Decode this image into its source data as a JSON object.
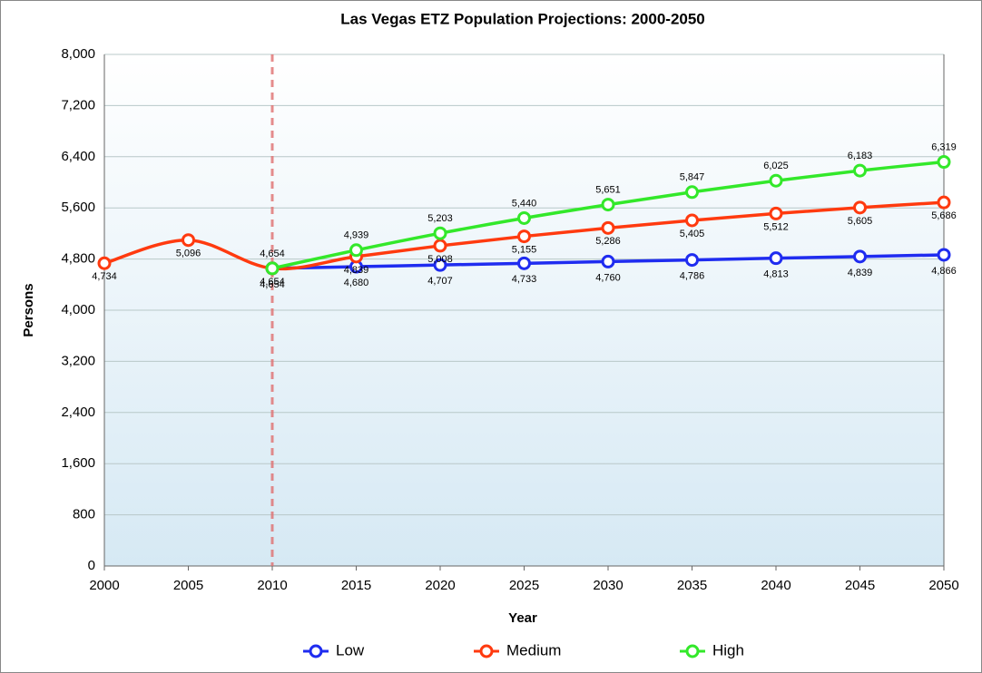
{
  "chart_data": {
    "type": "line",
    "title": "Las Vegas ETZ Population Projections: 2000-2050",
    "x_label": "Year",
    "y_label": "Persons",
    "x": [
      2000,
      2005,
      2010,
      2015,
      2020,
      2025,
      2030,
      2035,
      2040,
      2045,
      2050
    ],
    "xlim": [
      2000,
      2050
    ],
    "xticks": [
      2000,
      2005,
      2010,
      2015,
      2020,
      2025,
      2030,
      2035,
      2040,
      2045,
      2050
    ],
    "ylim": [
      0,
      8000
    ],
    "yticks": [
      0,
      800,
      {
        "value": 1600,
        "label": "1,600"
      },
      {
        "value": 2400,
        "label": "2,400"
      },
      {
        "value": 3200,
        "label": "3,200"
      },
      {
        "value": 4000,
        "label": "4,000"
      },
      {
        "value": 4800,
        "label": "4,800"
      },
      {
        "value": 5600,
        "label": "5,600"
      },
      {
        "value": 6400,
        "label": "6,400"
      },
      {
        "value": 7200,
        "label": "7,200"
      },
      {
        "value": 8000,
        "label": "8,000"
      }
    ],
    "grid": true,
    "legend": "bottom",
    "series": [
      {
        "name": "Low",
        "color": "#1f2cf0",
        "values": [
          null,
          null,
          4654,
          4680,
          4707,
          4733,
          4760,
          4786,
          4813,
          4839,
          4866
        ],
        "value_labels": [
          null,
          null,
          "4,654",
          "4,680",
          "4,707",
          "4,733",
          "4,760",
          "4,786",
          "4,813",
          "4,839",
          "4,866"
        ]
      },
      {
        "name": "Medium",
        "color": "#ff3a0f",
        "values": [
          4734,
          5096,
          4654,
          4839,
          5008,
          5155,
          5286,
          5405,
          5512,
          5605,
          5686
        ],
        "value_labels": [
          "4,734",
          "5,096",
          "4,654",
          "4,839",
          "5,008",
          "5,155",
          "5,286",
          "5,405",
          "5,512",
          "5,605",
          "5,686"
        ]
      },
      {
        "name": "High",
        "color": "#33e82a",
        "values": [
          null,
          null,
          4654,
          4939,
          5203,
          5440,
          5651,
          5847,
          6025,
          6183,
          6319
        ],
        "value_labels": [
          null,
          null,
          "4,654",
          "4,939",
          "5,203",
          "5,440",
          "5,651",
          "5,847",
          "6,025",
          "6,183",
          "6,319"
        ]
      }
    ]
  }
}
